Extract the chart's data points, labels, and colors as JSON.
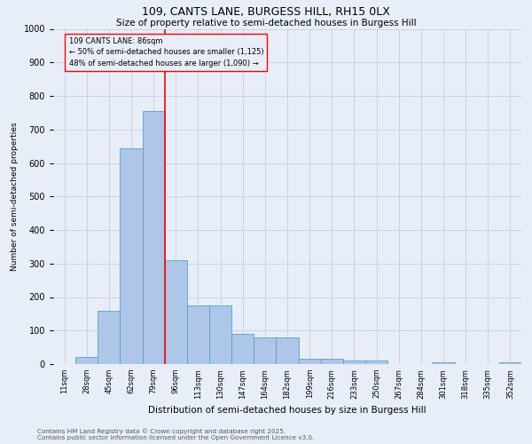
{
  "title1": "109, CANTS LANE, BURGESS HILL, RH15 0LX",
  "title2": "Size of property relative to semi-detached houses in Burgess Hill",
  "xlabel": "Distribution of semi-detached houses by size in Burgess Hill",
  "ylabel": "Number of semi-detached properties",
  "bin_labels": [
    "11sqm",
    "28sqm",
    "45sqm",
    "62sqm",
    "79sqm",
    "96sqm",
    "113sqm",
    "130sqm",
    "147sqm",
    "164sqm",
    "182sqm",
    "199sqm",
    "216sqm",
    "233sqm",
    "250sqm",
    "267sqm",
    "284sqm",
    "301sqm",
    "318sqm",
    "335sqm",
    "352sqm"
  ],
  "bar_heights": [
    0,
    20,
    160,
    645,
    755,
    310,
    175,
    175,
    90,
    80,
    80,
    15,
    15,
    10,
    10,
    0,
    0,
    5,
    0,
    0,
    5
  ],
  "bar_color": "#aec6e8",
  "bar_edge_color": "#5a9fd4",
  "grid_color": "#c8d4e8",
  "bg_color": "#e8eef8",
  "red_line_x": 4.5,
  "annotation_title": "109 CANTS LANE: 86sqm",
  "annotation_line1": "← 50% of semi-detached houses are smaller (1,125)",
  "annotation_line2": "48% of semi-detached houses are larger (1,090) →",
  "footer1": "Contains HM Land Registry data © Crown copyright and database right 2025.",
  "footer2": "Contains public sector information licensed under the Open Government Licence v3.0.",
  "ylim": [
    0,
    1000
  ],
  "yticks": [
    0,
    100,
    200,
    300,
    400,
    500,
    600,
    700,
    800,
    900,
    1000
  ]
}
